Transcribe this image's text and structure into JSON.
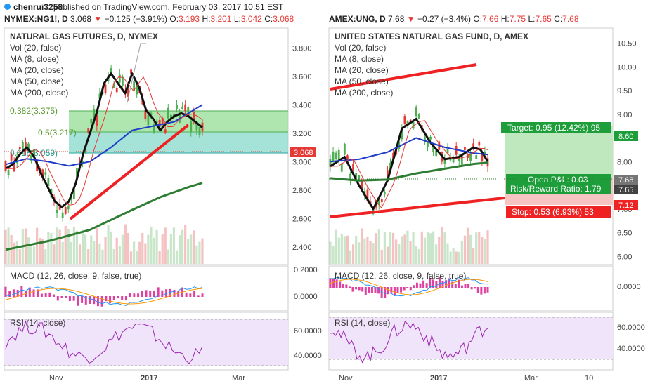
{
  "header": {
    "user": "chenrui3258",
    "published": "published on TradingView.com, February 03, 2017 10:51 EST"
  },
  "left": {
    "ticker": {
      "symbol": "NYMEX:NG1!, D",
      "last": "3.068",
      "change": "−0.125 (−3.91%)",
      "o_label": "O:",
      "o": "3.193",
      "h_label": "H:",
      "h": "3.201",
      "l_label": "L:",
      "l": "3.042",
      "c_label": "C:",
      "c": "3.068"
    },
    "title": "NATURAL GAS FUTURES, D, NYMEX",
    "indicators": [
      "Vol (20, false)",
      "MA (8, close)",
      "MA (20, close)",
      "MA (50, close)",
      "MA (200, close)"
    ],
    "fib": [
      {
        "label": "0.382(3.375)",
        "value": 3.375
      },
      {
        "label": "0.5(3.217)",
        "value": 3.217
      },
      {
        "label": "0.618(3.059)",
        "value": 3.059
      }
    ],
    "price_label": "3.068",
    "macd_title": "MACD (12, 26, close, 9, false, true)",
    "rsi_title": "RSI (14, close)",
    "x_ticks": [
      "Nov",
      "2017",
      "Mar"
    ]
  },
  "right": {
    "ticker": {
      "symbol": "AMEX:UNG, D",
      "last": "7.68",
      "change": "−0.27 (−3.4%)",
      "o_label": "O:",
      "o": "7.66",
      "h_label": "H:",
      "h": "7.75",
      "l_label": "L:",
      "l": "7.65",
      "c_label": "C:",
      "c": "7.68"
    },
    "title": "UNITED STATES NATURAL GAS FUND, D, AMEX",
    "indicators": [
      "Vol (20, false)",
      "MA (8, close)",
      "MA (20, close)",
      "MA (50, close)",
      "MA (200, close)"
    ],
    "target_label": "Target: 0.95 (12.42%) 95",
    "open_pl": "Open P&L: 0.03",
    "risk_reward": "Risk/Reward Ratio: 1.79",
    "stop_label": "Stop: 0.53 (6.93%) 53",
    "axis_badges": [
      "8.60",
      "7.68",
      "7.65",
      "7.12"
    ],
    "macd_title": "MACD (12, 26, close, 9, false, true)",
    "rsi_title": "RSI (14, close)",
    "x_ticks": [
      "Nov",
      "2017",
      "Mar",
      "10"
    ]
  },
  "colors": {
    "up": "#4caf50",
    "down": "#e53935",
    "ma8": "#111111",
    "ma20": "#e53935",
    "ma50": "#1e3cc8",
    "ma200": "#2e7d32",
    "trend": "#ee2222",
    "fib_green": "#8fd88f",
    "fib_teal": "#7fd4c8",
    "rsi_bg": "#f0e4fa",
    "rsi_line": "#9c27b0",
    "macd_line": "#2196f3",
    "signal_line": "#ff9800",
    "hist": "#e040a0",
    "target_fill": "#bfe8bf",
    "stop_fill": "#f7b8b8"
  },
  "chart_data": [
    {
      "type": "line",
      "title": "NATURAL GAS FUTURES, D, NYMEX",
      "y_ticks": [
        2.4,
        2.6,
        2.8,
        3.0,
        3.2,
        3.4,
        3.6,
        3.8
      ],
      "ylim": [
        2.3,
        3.9
      ],
      "series": [
        {
          "name": "MA (8, close)",
          "x": [
            0,
            10,
            20,
            30,
            40,
            50,
            60,
            70,
            80,
            90,
            100,
            110,
            120,
            130,
            140,
            150,
            160,
            170,
            180,
            190,
            200,
            210,
            220,
            230,
            240,
            250,
            260,
            270,
            280
          ],
          "values": [
            2.95,
            2.98,
            3.05,
            3.1,
            3.04,
            2.92,
            2.82,
            2.72,
            2.68,
            2.72,
            2.85,
            3.05,
            3.2,
            3.35,
            3.55,
            3.62,
            3.55,
            3.48,
            3.62,
            3.52,
            3.36,
            3.3,
            3.22,
            3.28,
            3.32,
            3.34,
            3.32,
            3.28,
            3.24
          ]
        },
        {
          "name": "MA (50, close)",
          "x": [
            0,
            30,
            60,
            90,
            120,
            150,
            180,
            210,
            240,
            260,
            280
          ],
          "values": [
            2.98,
            3.02,
            3.0,
            2.97,
            3.0,
            3.1,
            3.22,
            3.25,
            3.28,
            3.34,
            3.4
          ]
        },
        {
          "name": "MA (200, close)",
          "x": [
            0,
            60,
            120,
            180,
            220,
            260,
            280
          ],
          "values": [
            2.38,
            2.44,
            2.52,
            2.66,
            2.75,
            2.82,
            2.85
          ]
        }
      ]
    },
    {
      "type": "line",
      "title": "UNITED STATES NATURAL GAS FUND, D, AMEX",
      "y_ticks": [
        6.0,
        6.5,
        7.0,
        7.5,
        8.0,
        8.5,
        9.0,
        9.5,
        10.0,
        10.5
      ],
      "ylim": [
        5.9,
        10.7
      ],
      "series": [
        {
          "name": "MA (8, close)",
          "x": [
            0,
            20,
            40,
            60,
            80,
            100,
            120,
            140,
            160,
            180,
            200,
            210,
            220
          ],
          "values": [
            7.9,
            8.1,
            7.5,
            7.0,
            7.6,
            8.7,
            8.9,
            8.4,
            8.05,
            8.1,
            8.3,
            8.25,
            8.0
          ]
        },
        {
          "name": "MA (50, close)",
          "x": [
            0,
            40,
            80,
            120,
            160,
            200,
            220
          ],
          "values": [
            8.0,
            8.05,
            8.2,
            8.5,
            8.3,
            8.18,
            8.15
          ]
        },
        {
          "name": "MA (200, close)",
          "x": [
            0,
            40,
            80,
            120,
            160,
            200,
            220
          ],
          "values": [
            7.65,
            7.6,
            7.62,
            7.75,
            7.85,
            7.95,
            7.98
          ]
        }
      ]
    }
  ]
}
